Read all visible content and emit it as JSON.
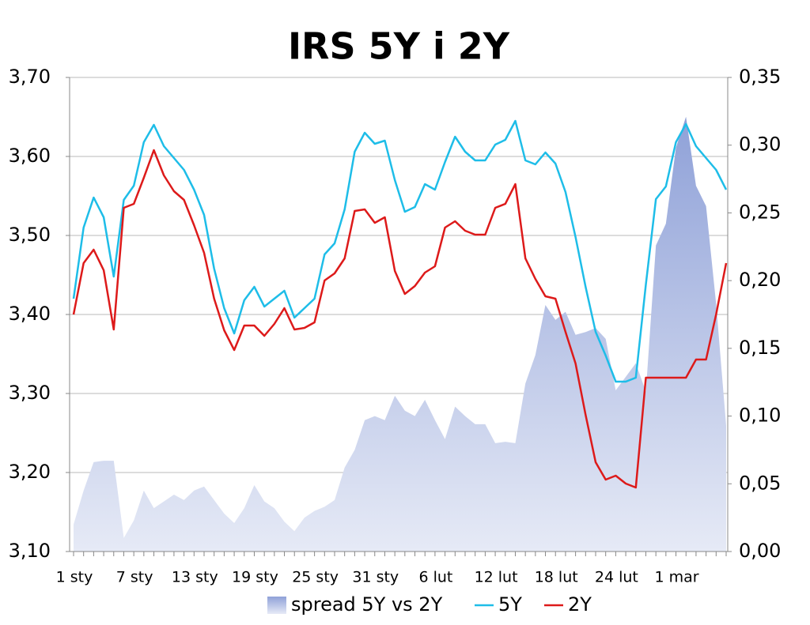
{
  "chart_data": {
    "type": "line",
    "title": "IRS 5Y i 2Y",
    "categories": [
      "1 sty",
      null,
      null,
      null,
      null,
      null,
      "7 sty",
      null,
      null,
      null,
      null,
      null,
      "13 sty",
      null,
      null,
      null,
      null,
      null,
      "19 sty",
      null,
      null,
      null,
      null,
      null,
      "25 sty",
      null,
      null,
      null,
      null,
      null,
      "31 sty",
      null,
      null,
      null,
      null,
      null,
      "6 lut",
      null,
      null,
      null,
      null,
      null,
      "12 lut",
      null,
      null,
      null,
      null,
      null,
      "18 lut",
      null,
      null,
      null,
      null,
      null,
      "24 lut",
      null,
      null,
      null,
      null,
      null,
      "1 mar",
      null,
      null,
      null,
      null,
      null
    ],
    "series": [
      {
        "name": "spread 5Y vs 2Y",
        "type": "area",
        "axis": "y2",
        "color": "#a9b8e3",
        "values": [
          0.02,
          0.045,
          0.066,
          0.067,
          0.067,
          0.01,
          0.023,
          0.045,
          0.032,
          0.037,
          0.042,
          0.038,
          0.045,
          0.048,
          0.038,
          0.028,
          0.021,
          0.032,
          0.049,
          0.037,
          0.032,
          0.022,
          0.015,
          0.025,
          0.03,
          0.033,
          0.038,
          0.062,
          0.075,
          0.097,
          0.1,
          0.097,
          0.115,
          0.104,
          0.1,
          0.112,
          0.097,
          0.083,
          0.107,
          0.1,
          0.094,
          0.094,
          0.08,
          0.081,
          0.08,
          0.124,
          0.145,
          0.182,
          0.171,
          0.177,
          0.16,
          0.162,
          0.165,
          0.157,
          0.119,
          0.129,
          0.139,
          0.118,
          0.226,
          0.242,
          0.298,
          0.321,
          0.27,
          0.255,
          0.183,
          0.093
        ]
      },
      {
        "name": "5Y",
        "color": "#1ebde8",
        "values": [
          3.42,
          3.51,
          3.548,
          3.523,
          3.448,
          3.545,
          3.563,
          3.618,
          3.64,
          3.613,
          3.598,
          3.583,
          3.558,
          3.526,
          3.458,
          3.408,
          3.376,
          3.418,
          3.435,
          3.41,
          3.42,
          3.43,
          3.396,
          3.408,
          3.42,
          3.476,
          3.49,
          3.533,
          3.606,
          3.63,
          3.616,
          3.62,
          3.57,
          3.53,
          3.536,
          3.565,
          3.558,
          3.593,
          3.625,
          3.606,
          3.595,
          3.595,
          3.615,
          3.621,
          3.645,
          3.595,
          3.59,
          3.605,
          3.591,
          3.555,
          3.498,
          3.435,
          3.378,
          3.348,
          3.315,
          3.315,
          3.32,
          3.438,
          3.546,
          3.562,
          3.618,
          3.641,
          3.613,
          3.598,
          3.583,
          3.558
        ]
      },
      {
        "name": "2Y",
        "color": "#dd1a1a",
        "values": [
          3.4,
          3.465,
          3.482,
          3.456,
          3.381,
          3.535,
          3.54,
          3.573,
          3.608,
          3.576,
          3.556,
          3.545,
          3.513,
          3.478,
          3.42,
          3.38,
          3.355,
          3.386,
          3.386,
          3.373,
          3.388,
          3.408,
          3.381,
          3.383,
          3.39,
          3.443,
          3.452,
          3.471,
          3.531,
          3.533,
          3.516,
          3.523,
          3.455,
          3.426,
          3.436,
          3.453,
          3.461,
          3.51,
          3.518,
          3.506,
          3.501,
          3.501,
          3.535,
          3.54,
          3.565,
          3.471,
          3.445,
          3.423,
          3.42,
          3.378,
          3.338,
          3.273,
          3.213,
          3.191,
          3.196,
          3.186,
          3.181,
          3.32,
          3.32,
          3.32,
          3.32,
          3.32,
          3.343,
          3.343,
          3.4,
          3.465
        ]
      }
    ],
    "ylim": [
      3.1,
      3.7
    ],
    "yticks": [
      {
        "value": 3.1,
        "label": "3,10"
      },
      {
        "value": 3.2,
        "label": "3,20"
      },
      {
        "value": 3.3,
        "label": "3,30"
      },
      {
        "value": 3.4,
        "label": "3,40"
      },
      {
        "value": 3.5,
        "label": "3,50"
      },
      {
        "value": 3.6,
        "label": "3,60"
      },
      {
        "value": 3.7,
        "label": "3,70"
      }
    ],
    "y2lim": [
      0,
      0.35
    ],
    "y2ticks": [
      {
        "value": 0,
        "label": "0,00"
      },
      {
        "value": 0.05,
        "label": "0,05"
      },
      {
        "value": 0.1,
        "label": "0,10"
      },
      {
        "value": 0.15,
        "label": "0,15"
      },
      {
        "value": 0.2,
        "label": "0,20"
      },
      {
        "value": 0.25,
        "label": "0,25"
      },
      {
        "value": 0.3,
        "label": "0,30"
      },
      {
        "value": 0.35,
        "label": "0,35"
      }
    ],
    "grid": true,
    "legend": "bottom"
  }
}
